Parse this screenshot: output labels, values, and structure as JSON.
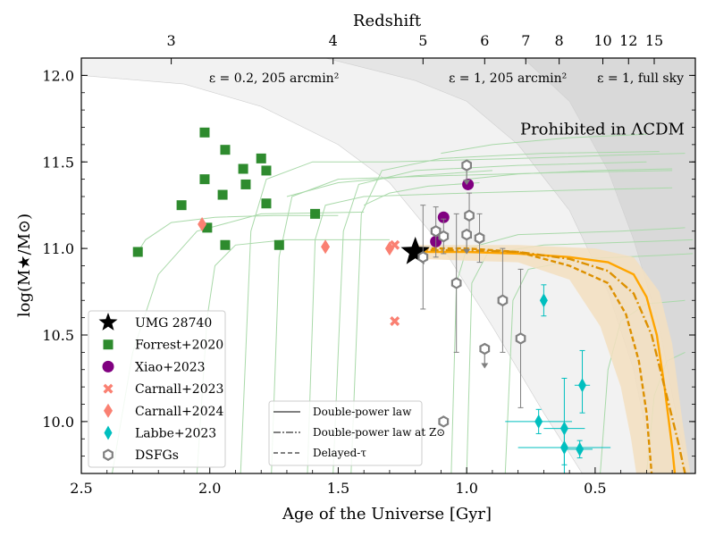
{
  "chart_data": {
    "type": "scatter",
    "xlabel": "Age of the Universe [Gyr]",
    "ylabel": "log(M★/M⊙)",
    "top_axis_label": "Redshift",
    "xlim": [
      2.5,
      0.11
    ],
    "ylim": [
      9.7,
      12.1
    ],
    "x_ticks": [
      2.5,
      2.0,
      1.5,
      1.0,
      0.5
    ],
    "x_tick_labels": [
      "2.5",
      "2.0",
      "1.5",
      "1.0",
      "0.5"
    ],
    "y_ticks": [
      10.0,
      10.5,
      11.0,
      11.5,
      12.0
    ],
    "y_tick_labels": [
      "10.0",
      "10.5",
      "11.0",
      "11.5",
      "12.0"
    ],
    "top_ticks": [
      {
        "label": "3",
        "age": 2.15
      },
      {
        "label": "4",
        "age": 1.52
      },
      {
        "label": "5",
        "age": 1.17
      },
      {
        "label": "6",
        "age": 0.93
      },
      {
        "label": "7",
        "age": 0.77
      },
      {
        "label": "8",
        "age": 0.64
      },
      {
        "label": "10",
        "age": 0.47
      },
      {
        "label": "12",
        "age": 0.37
      },
      {
        "label": "15",
        "age": 0.27
      }
    ],
    "region_labels": [
      {
        "text": "ε = 0.2, 205 arcmin²",
        "x": 1.75,
        "y": 11.96
      },
      {
        "text": "ε = 1, 205 arcmin²",
        "x": 0.84,
        "y": 11.96
      },
      {
        "text": "ε = 1, full sky",
        "x": 0.26,
        "y": 11.96
      },
      {
        "text": "Prohibited in ΛCDM",
        "x": 0.28,
        "y": 11.66
      }
    ],
    "exclusion_curves": [
      {
        "name": "eps02",
        "points": [
          [
            2.5,
            12.0
          ],
          [
            2.1,
            11.95
          ],
          [
            1.8,
            11.82
          ],
          [
            1.5,
            11.6
          ],
          [
            1.3,
            11.38
          ],
          [
            1.1,
            11.02
          ],
          [
            0.9,
            10.55
          ],
          [
            0.7,
            10.05
          ],
          [
            0.55,
            9.7
          ]
        ]
      },
      {
        "name": "eps1_205",
        "points": [
          [
            1.55,
            12.1
          ],
          [
            1.2,
            11.97
          ],
          [
            1.0,
            11.85
          ],
          [
            0.8,
            11.6
          ],
          [
            0.6,
            11.22
          ],
          [
            0.45,
            10.75
          ],
          [
            0.35,
            10.3
          ],
          [
            0.27,
            9.7
          ]
        ]
      },
      {
        "name": "eps1_fullsky",
        "points": [
          [
            0.78,
            12.1
          ],
          [
            0.6,
            11.85
          ],
          [
            0.45,
            11.45
          ],
          [
            0.35,
            11.05
          ],
          [
            0.25,
            10.55
          ],
          [
            0.18,
            10.0
          ],
          [
            0.14,
            9.7
          ]
        ]
      }
    ],
    "series": [
      {
        "name": "UMG 28740",
        "marker": "star",
        "color": "#000000",
        "points": [
          {
            "x": 1.2,
            "y": 10.98
          }
        ]
      },
      {
        "name": "Forrest+2020",
        "marker": "square",
        "color": "#2e8b2e",
        "points": [
          {
            "x": 2.28,
            "y": 10.98
          },
          {
            "x": 2.02,
            "y": 11.67
          },
          {
            "x": 1.94,
            "y": 11.57
          },
          {
            "x": 1.8,
            "y": 11.52
          },
          {
            "x": 1.87,
            "y": 11.46
          },
          {
            "x": 1.78,
            "y": 11.45
          },
          {
            "x": 2.02,
            "y": 11.4
          },
          {
            "x": 1.86,
            "y": 11.37
          },
          {
            "x": 1.95,
            "y": 11.31
          },
          {
            "x": 1.78,
            "y": 11.26
          },
          {
            "x": 2.11,
            "y": 11.25
          },
          {
            "x": 1.59,
            "y": 11.2
          },
          {
            "x": 2.01,
            "y": 11.12
          },
          {
            "x": 1.94,
            "y": 11.02
          },
          {
            "x": 1.73,
            "y": 11.02
          }
        ]
      },
      {
        "name": "Xiao+2023",
        "marker": "circle",
        "color": "#800080",
        "points": [
          {
            "x": 0.995,
            "y": 11.37
          },
          {
            "x": 1.09,
            "y": 11.18
          },
          {
            "x": 1.12,
            "y": 11.04
          }
        ]
      },
      {
        "name": "Carnall+2023",
        "marker": "cross",
        "color": "#fa8072",
        "points": [
          {
            "x": 1.28,
            "y": 10.58
          },
          {
            "x": 1.28,
            "y": 11.02
          }
        ]
      },
      {
        "name": "Carnall+2024",
        "marker": "diamond",
        "color": "#fa8072",
        "points": [
          {
            "x": 2.03,
            "y": 11.14
          },
          {
            "x": 1.55,
            "y": 11.01
          },
          {
            "x": 1.3,
            "y": 11.0
          }
        ]
      },
      {
        "name": "Labbe+2023",
        "marker": "thin_diamond",
        "color": "#00bfbf",
        "points": [
          {
            "x": 0.7,
            "y": 10.7,
            "yerr": [
              0.09,
              0.09
            ]
          },
          {
            "x": 0.55,
            "y": 10.21,
            "yerr": [
              0.16,
              0.2
            ],
            "xerr": 0.03
          },
          {
            "x": 0.72,
            "y": 10.0,
            "yerr": [
              0.07,
              0.07
            ],
            "xerr": 0.13
          },
          {
            "x": 0.62,
            "y": 9.96,
            "yerr": [
              0.26,
              0.29
            ],
            "xerr": 0.08
          },
          {
            "x": 0.62,
            "y": 9.85,
            "yerr": [
              0.1,
              0.1
            ],
            "xerr": 0.18
          },
          {
            "x": 0.56,
            "y": 9.84,
            "yerr": [
              0.05,
              0.05
            ],
            "xerr": 0.05
          }
        ]
      },
      {
        "name": "DSFGs",
        "marker": "hexagon",
        "color": "#808080",
        "points": [
          {
            "x": 1.0,
            "y": 11.48,
            "upper_limit": true
          },
          {
            "x": 0.99,
            "y": 11.19,
            "yerr": [
              0.13,
              0.13
            ]
          },
          {
            "x": 1.12,
            "y": 11.1,
            "yerr": [
              0.15,
              0.14
            ]
          },
          {
            "x": 1.09,
            "y": 11.07,
            "yerr": [
              0.1,
              0.1
            ]
          },
          {
            "x": 1.17,
            "y": 10.95,
            "yerr": [
              0.3,
              0.3
            ]
          },
          {
            "x": 1.0,
            "y": 11.08,
            "upper_limit": true
          },
          {
            "x": 0.95,
            "y": 11.06,
            "yerr": [
              0.14,
              0.14
            ]
          },
          {
            "x": 1.04,
            "y": 10.8,
            "yerr": [
              0.4,
              0.4
            ]
          },
          {
            "x": 0.86,
            "y": 10.7,
            "yerr": [
              0.3,
              0.3
            ]
          },
          {
            "x": 0.79,
            "y": 10.48,
            "yerr": [
              0.4,
              0.4
            ]
          },
          {
            "x": 0.93,
            "y": 10.42,
            "upper_limit": true
          },
          {
            "x": 1.09,
            "y": 10.0
          }
        ]
      }
    ],
    "model_curves": [
      {
        "name": "Double-power law",
        "style": "solid",
        "color": "#ffa500",
        "points": [
          [
            1.2,
            10.98
          ],
          [
            1.0,
            10.98
          ],
          [
            0.8,
            10.97
          ],
          [
            0.6,
            10.95
          ],
          [
            0.45,
            10.92
          ],
          [
            0.35,
            10.85
          ],
          [
            0.3,
            10.72
          ],
          [
            0.26,
            10.5
          ],
          [
            0.23,
            10.2
          ],
          [
            0.2,
            9.85
          ],
          [
            0.19,
            9.7
          ]
        ]
      },
      {
        "name": "Double-power law at Z⊙",
        "style": "dashdot",
        "color": "#dd9000",
        "points": [
          [
            1.2,
            10.99
          ],
          [
            1.0,
            10.99
          ],
          [
            0.8,
            10.98
          ],
          [
            0.6,
            10.94
          ],
          [
            0.45,
            10.87
          ],
          [
            0.35,
            10.74
          ],
          [
            0.28,
            10.5
          ],
          [
            0.23,
            10.2
          ],
          [
            0.18,
            9.9
          ],
          [
            0.15,
            9.7
          ]
        ]
      },
      {
        "name": "Delayed-τ",
        "style": "dashed",
        "color": "#dd9000",
        "points": [
          [
            1.2,
            11.0
          ],
          [
            1.0,
            11.0
          ],
          [
            0.8,
            10.98
          ],
          [
            0.6,
            10.9
          ],
          [
            0.45,
            10.8
          ],
          [
            0.38,
            10.62
          ],
          [
            0.33,
            10.35
          ],
          [
            0.3,
            10.05
          ],
          [
            0.28,
            9.7
          ]
        ]
      }
    ],
    "model_band": {
      "upper": [
        [
          1.2,
          11.02
        ],
        [
          0.8,
          11.02
        ],
        [
          0.5,
          11.0
        ],
        [
          0.35,
          10.95
        ],
        [
          0.25,
          10.75
        ],
        [
          0.2,
          10.45
        ],
        [
          0.16,
          10.0
        ],
        [
          0.13,
          9.7
        ]
      ],
      "lower": [
        [
          1.2,
          10.94
        ],
        [
          0.8,
          10.92
        ],
        [
          0.6,
          10.82
        ],
        [
          0.48,
          10.55
        ],
        [
          0.4,
          10.2
        ],
        [
          0.36,
          9.9
        ],
        [
          0.34,
          9.7
        ]
      ]
    },
    "tracks": [
      [
        [
          2.28,
          10.98
        ],
        [
          2.25,
          11.05
        ],
        [
          2.15,
          11.15
        ],
        [
          1.98,
          11.18
        ],
        [
          1.75,
          11.19
        ],
        [
          1.5,
          11.19
        ]
      ],
      [
        [
          2.38,
          9.7
        ],
        [
          2.3,
          10.4
        ],
        [
          2.2,
          10.85
        ],
        [
          2.05,
          11.1
        ],
        [
          1.8,
          11.2
        ],
        [
          1.4,
          11.21
        ]
      ],
      [
        [
          2.05,
          9.7
        ],
        [
          2.01,
          10.6
        ],
        [
          1.98,
          10.9
        ],
        [
          1.9,
          11.02
        ],
        [
          1.7,
          11.05
        ],
        [
          1.3,
          11.05
        ]
      ],
      [
        [
          1.88,
          9.7
        ],
        [
          1.84,
          11.1
        ],
        [
          1.78,
          11.4
        ],
        [
          1.6,
          11.5
        ],
        [
          1.3,
          11.5
        ],
        [
          0.8,
          11.52
        ],
        [
          0.4,
          11.54
        ],
        [
          0.15,
          11.55
        ]
      ],
      [
        [
          1.76,
          9.7
        ],
        [
          1.73,
          10.95
        ],
        [
          1.68,
          11.3
        ],
        [
          1.5,
          11.4
        ],
        [
          1.1,
          11.42
        ],
        [
          0.6,
          11.44
        ],
        [
          0.2,
          11.45
        ]
      ],
      [
        [
          1.62,
          9.7
        ],
        [
          1.59,
          11.05
        ],
        [
          1.55,
          11.25
        ],
        [
          1.4,
          11.3
        ],
        [
          1.0,
          11.32
        ],
        [
          0.5,
          11.34
        ],
        [
          0.2,
          11.35
        ]
      ],
      [
        [
          1.52,
          9.7
        ],
        [
          1.48,
          11.1
        ],
        [
          1.42,
          11.37
        ],
        [
          1.2,
          11.45
        ],
        [
          0.8,
          11.48
        ],
        [
          0.3,
          11.5
        ]
      ],
      [
        [
          1.45,
          9.7
        ],
        [
          1.41,
          11.2
        ],
        [
          1.33,
          11.45
        ],
        [
          1.1,
          11.52
        ],
        [
          0.7,
          11.55
        ],
        [
          0.25,
          11.56
        ]
      ],
      [
        [
          1.7,
          11.3
        ],
        [
          1.5,
          11.38
        ],
        [
          1.2,
          11.42
        ],
        [
          0.9,
          11.45
        ]
      ],
      [
        [
          1.4,
          11.25
        ],
        [
          1.3,
          11.32
        ],
        [
          1.15,
          11.36
        ],
        [
          0.95,
          11.38
        ]
      ],
      [
        [
          1.06,
          9.7
        ],
        [
          1.04,
          10.8
        ],
        [
          1.0,
          11.0
        ],
        [
          0.8,
          11.08
        ],
        [
          0.4,
          11.1
        ],
        [
          0.15,
          11.12
        ]
      ],
      [
        [
          1.0,
          9.7
        ],
        [
          0.98,
          10.8
        ],
        [
          0.92,
          10.97
        ],
        [
          0.7,
          11.02
        ],
        [
          0.3,
          11.04
        ],
        [
          0.12,
          11.05
        ]
      ],
      [
        [
          0.85,
          9.7
        ],
        [
          0.82,
          10.7
        ],
        [
          0.76,
          10.88
        ],
        [
          0.55,
          10.94
        ],
        [
          0.25,
          10.96
        ],
        [
          0.12,
          10.97
        ]
      ],
      [
        [
          0.48,
          9.7
        ],
        [
          0.45,
          10.3
        ],
        [
          0.4,
          10.58
        ],
        [
          0.3,
          10.68
        ],
        [
          0.15,
          10.7
        ]
      ],
      [
        [
          0.3,
          9.7
        ],
        [
          0.27,
          10.15
        ],
        [
          0.22,
          10.35
        ],
        [
          0.15,
          10.4
        ]
      ],
      [
        [
          1.1,
          11.55
        ],
        [
          0.9,
          11.6
        ],
        [
          0.6,
          11.64
        ],
        [
          0.3,
          11.66
        ]
      ],
      [
        [
          1.0,
          11.4
        ],
        [
          0.8,
          11.43
        ],
        [
          0.5,
          11.45
        ],
        [
          0.2,
          11.46
        ]
      ]
    ],
    "legend": {
      "placement": "lower-left",
      "entries": [
        "UMG 28740",
        "Forrest+2020",
        "Xiao+2023",
        "Carnall+2023",
        "Carnall+2024",
        "Labbe+2023",
        "DSFGs"
      ]
    },
    "model_legend": {
      "placement": "lower-center",
      "entries": [
        "Double-power law",
        "Double-power law at Z⊙",
        "Delayed-τ"
      ]
    },
    "colors": {
      "region1": "#f2f2f2",
      "region2": "#e5e5e5",
      "region3": "#d9d9d9",
      "track": "#a9d9a9",
      "band": "#f3dfc0"
    }
  }
}
